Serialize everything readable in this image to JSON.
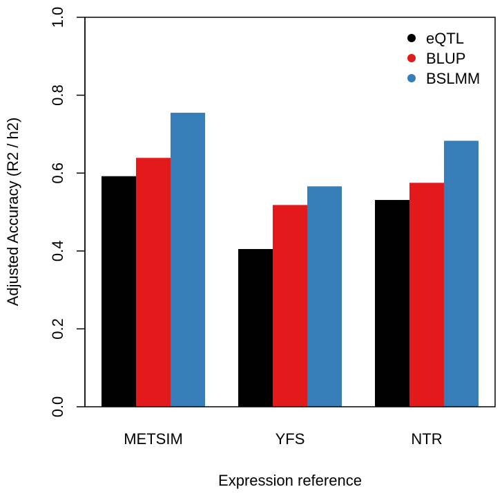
{
  "chart_data": {
    "type": "bar",
    "title": "",
    "xlabel": "Expression reference",
    "ylabel": "Adjusted Accuracy (R2 / h2)",
    "ylim": [
      0,
      1
    ],
    "yticks": [
      "0.0",
      "0.2",
      "0.4",
      "0.6",
      "0.8",
      "1.0"
    ],
    "categories": [
      "METSIM",
      "YFS",
      "NTR"
    ],
    "series": [
      {
        "name": "eQTL",
        "color": "#000000",
        "values": [
          0.592,
          0.405,
          0.531
        ]
      },
      {
        "name": "BLUP",
        "color": "#e31a1c",
        "values": [
          0.639,
          0.518,
          0.575
        ]
      },
      {
        "name": "BSLMM",
        "color": "#377eb8",
        "values": [
          0.755,
          0.566,
          0.683
        ]
      }
    ],
    "legend_position": "top-right",
    "grid": false
  }
}
